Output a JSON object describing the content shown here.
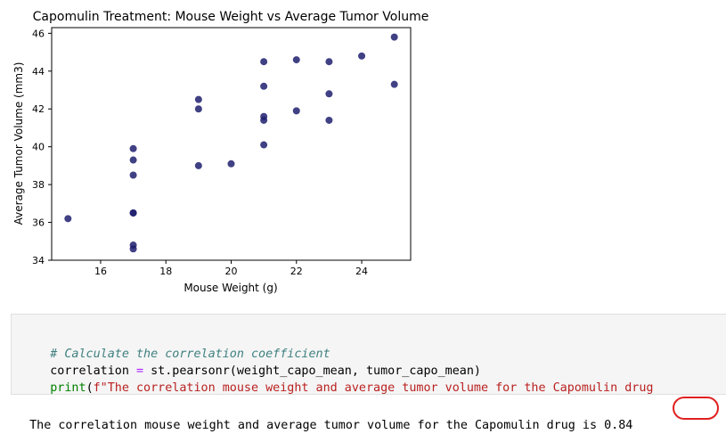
{
  "chart_data": {
    "type": "scatter",
    "title": "Capomulin Treatment: Mouse Weight vs Average Tumor Volume",
    "xlabel": "Mouse Weight (g)",
    "ylabel": "Average Tumor Volume (mm3)",
    "xlim": [
      14.5,
      25.5
    ],
    "ylim": [
      34,
      46.3
    ],
    "xticks": [
      16,
      18,
      20,
      22,
      24
    ],
    "yticks": [
      34,
      36,
      38,
      40,
      42,
      44,
      46
    ],
    "marker_color": "#1f1f6e",
    "grid": false,
    "points": [
      {
        "x": 15,
        "y": 36.2
      },
      {
        "x": 17,
        "y": 34.6
      },
      {
        "x": 17,
        "y": 34.8
      },
      {
        "x": 17,
        "y": 36.5
      },
      {
        "x": 17,
        "y": 36.5
      },
      {
        "x": 17,
        "y": 38.5
      },
      {
        "x": 17,
        "y": 39.3
      },
      {
        "x": 17,
        "y": 39.9
      },
      {
        "x": 19,
        "y": 39.0
      },
      {
        "x": 19,
        "y": 42.0
      },
      {
        "x": 19,
        "y": 42.5
      },
      {
        "x": 20,
        "y": 39.1
      },
      {
        "x": 21,
        "y": 40.1
      },
      {
        "x": 21,
        "y": 41.4
      },
      {
        "x": 21,
        "y": 41.6
      },
      {
        "x": 21,
        "y": 43.2
      },
      {
        "x": 21,
        "y": 44.5
      },
      {
        "x": 22,
        "y": 41.9
      },
      {
        "x": 22,
        "y": 44.6
      },
      {
        "x": 23,
        "y": 41.4
      },
      {
        "x": 23,
        "y": 42.8
      },
      {
        "x": 23,
        "y": 44.5
      },
      {
        "x": 24,
        "y": 44.8
      },
      {
        "x": 25,
        "y": 43.3
      },
      {
        "x": 25,
        "y": 45.8
      }
    ]
  },
  "code": {
    "comment": "# Calculate the correlation coefficient",
    "line2": {
      "var": "correlation ",
      "eq": "=",
      "rest": " st.pearsonr(weight_capo_mean, tumor_capo_mean)"
    },
    "line3": {
      "fn": "print",
      "open": "(",
      "str": "f\"The correlation mouse weight and average tumor volume for the Capomulin drug"
    }
  },
  "output": {
    "text": "The correlation mouse weight and average tumor volume for the Capomulin drug is ",
    "value": "0.84"
  },
  "colors": {
    "highlight": "#e02020",
    "cell_bg": "#f5f5f5"
  }
}
